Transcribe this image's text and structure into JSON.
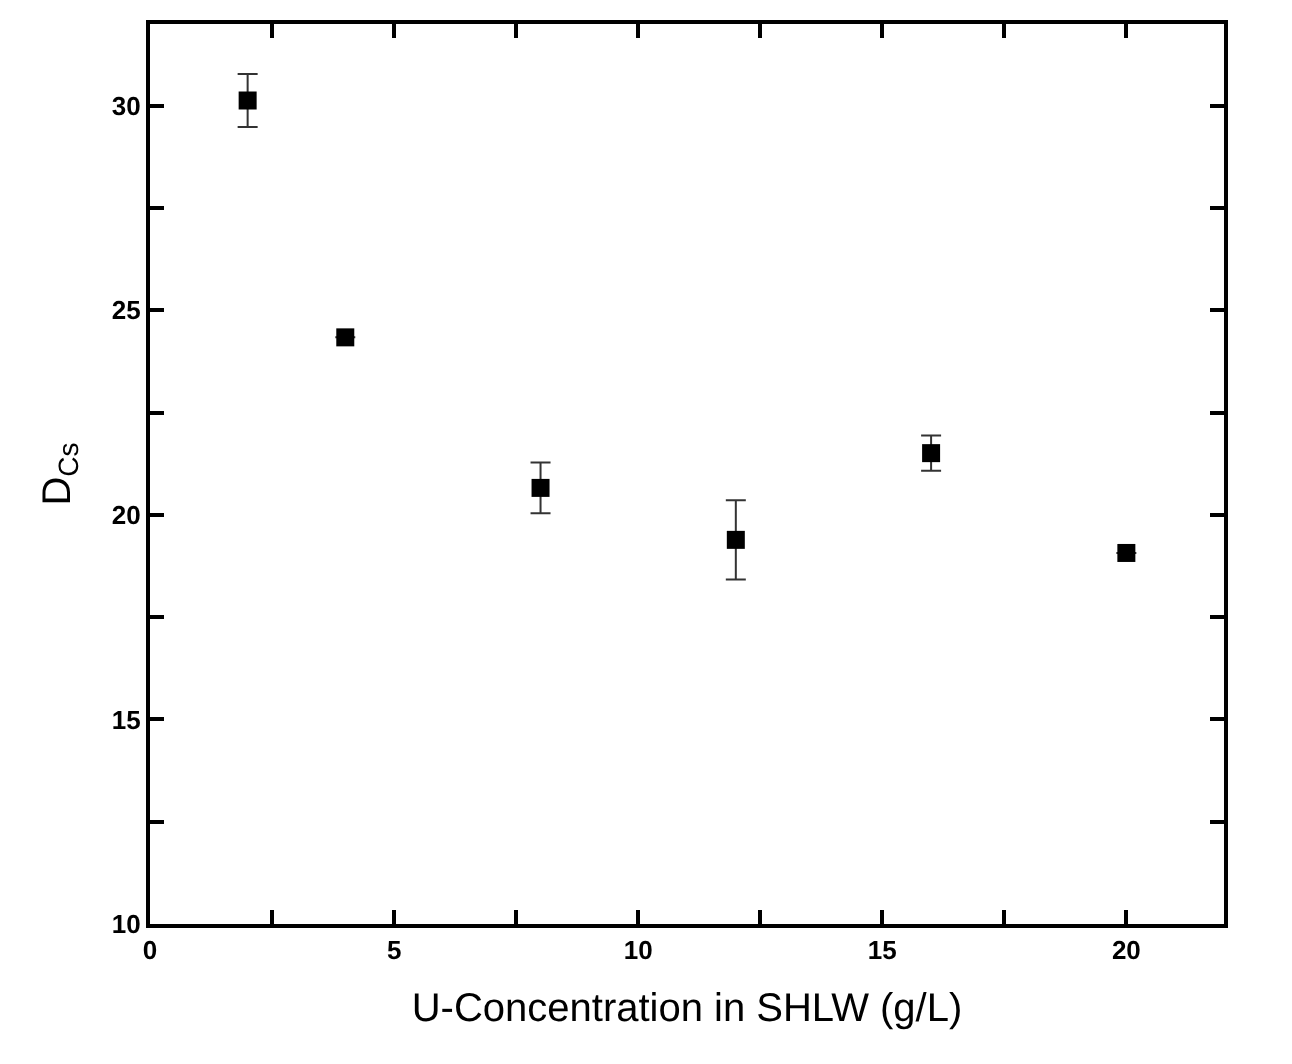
{
  "chart_data": {
    "type": "scatter",
    "xlabel": "U-Concentration in SHLW (g/L)",
    "ylabel": "D$_{Cs}$",
    "x": [
      2,
      4,
      8,
      12,
      16,
      20
    ],
    "series": [
      {
        "color": "#000000",
        "values": [
          30.13,
          24.34,
          20.66,
          19.39,
          21.51,
          19.07
        ],
        "errors": [
          0.65,
          null,
          0.62,
          0.97,
          0.43,
          null
        ]
      }
    ],
    "marker": "square",
    "xlim": [
      0,
      22
    ],
    "ylim": [
      10,
      32
    ],
    "xticks": [
      0,
      {
        "value": 2.5,
        "label": null
      },
      5,
      {
        "value": 7.5,
        "label": null
      },
      10,
      {
        "value": 12.5,
        "label": null
      },
      15,
      {
        "value": 17.5,
        "label": null
      },
      20
    ],
    "yticks": [
      10,
      {
        "value": 12.5,
        "label": null
      },
      15,
      {
        "value": 17.5,
        "label": null
      },
      20,
      {
        "value": 22.5,
        "label": null
      },
      25,
      {
        "value": 27.5,
        "label": null
      },
      30
    ]
  }
}
